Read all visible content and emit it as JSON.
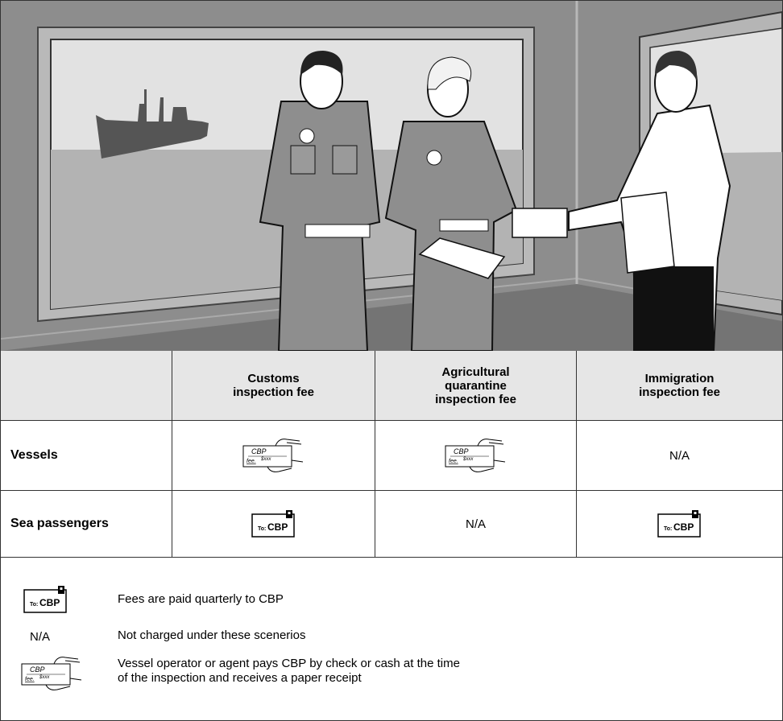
{
  "table": {
    "headers": [
      [
        "Customs",
        "inspection fee"
      ],
      [
        "Agricultural",
        "quarantine",
        "inspection fee"
      ],
      [
        "Immigration",
        "inspection fee"
      ]
    ],
    "rows": [
      {
        "label": "Vessels",
        "cells": [
          {
            "payee": "CBP",
            "memo": "fee.",
            "amount": "$xxx"
          },
          {
            "payee": "CBP",
            "memo": "fee.",
            "amount": "$xxx"
          },
          "N/A"
        ]
      },
      {
        "label": "Sea passengers",
        "cells": [
          {
            "to": "To:",
            "payee": "CBP"
          },
          "N/A",
          {
            "to": "To:",
            "payee": "CBP"
          }
        ]
      }
    ]
  },
  "legend": [
    {
      "icon": {
        "to": "To:",
        "payee": "CBP"
      },
      "text": [
        "Fees are paid quarterly to CBP"
      ]
    },
    {
      "symbol": "N/A",
      "text": [
        "Not charged under these scenerios"
      ]
    },
    {
      "icon": {
        "payee": "CBP",
        "memo": "fee.",
        "amount": "$xxx"
      },
      "text": [
        "Vessel operator or agent pays CBP by check or cash at the time",
        "of the inspection and receives a paper receipt"
      ]
    }
  ]
}
